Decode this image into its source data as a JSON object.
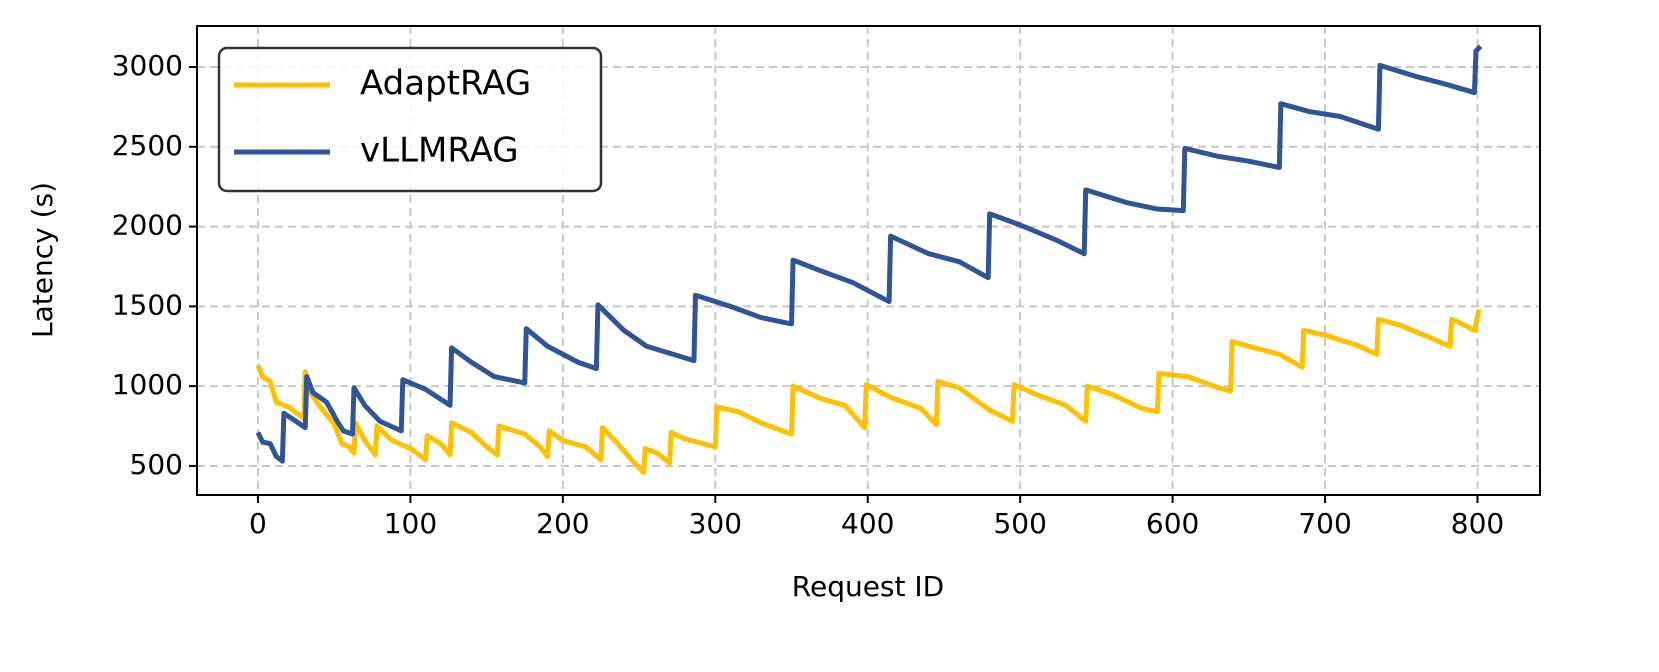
{
  "chart_data": {
    "type": "line",
    "xlabel": "Request ID",
    "ylabel": "Latency (s)",
    "xlim": [
      -40,
      841
    ],
    "ylim": [
      318,
      3257
    ],
    "xticks": [
      0,
      100,
      200,
      300,
      400,
      500,
      600,
      700,
      800
    ],
    "yticks": [
      500,
      1000,
      1500,
      2000,
      2500,
      3000
    ],
    "grid": true,
    "legend": "upper left",
    "series": [
      {
        "name": "AdaptRAG",
        "color": "#ffc000",
        "x": [
          0,
          3,
          8,
          12,
          20,
          30,
          31,
          33,
          40,
          50,
          55,
          60,
          63,
          64,
          70,
          77,
          78,
          88,
          100,
          110,
          111,
          120,
          126,
          127,
          140,
          150,
          157,
          158,
          175,
          185,
          190,
          191,
          200,
          215,
          225,
          226,
          235,
          245,
          253,
          254,
          262,
          270,
          271,
          280,
          300,
          301,
          315,
          330,
          350,
          351,
          370,
          385,
          398,
          399,
          415,
          435,
          445,
          446,
          460,
          480,
          495,
          496,
          510,
          530,
          543,
          544,
          560,
          580,
          590,
          591,
          610,
          630,
          638,
          639,
          650,
          670,
          685,
          686,
          700,
          720,
          734,
          735,
          750,
          770,
          782,
          783,
          790,
          798,
          801
        ],
        "values": [
          1130,
          1060,
          1030,
          900,
          870,
          800,
          1090,
          980,
          880,
          760,
          640,
          620,
          580,
          770,
          660,
          570,
          750,
          660,
          610,
          540,
          690,
          640,
          570,
          770,
          710,
          620,
          570,
          750,
          700,
          620,
          560,
          720,
          660,
          620,
          540,
          740,
          650,
          540,
          460,
          610,
          580,
          520,
          710,
          670,
          620,
          870,
          840,
          770,
          700,
          1000,
          920,
          880,
          740,
          1010,
          930,
          860,
          760,
          1030,
          990,
          850,
          780,
          1010,
          950,
          880,
          780,
          1000,
          950,
          860,
          840,
          1080,
          1060,
          990,
          970,
          1280,
          1250,
          1200,
          1120,
          1350,
          1320,
          1260,
          1200,
          1420,
          1380,
          1300,
          1250,
          1420,
          1390,
          1350,
          1480
        ]
      },
      {
        "name": "vLLMRAG",
        "color": "#2f5597",
        "x": [
          0,
          3,
          8,
          12,
          16,
          17,
          25,
          31,
          32,
          36,
          45,
          52,
          56,
          62,
          63,
          70,
          80,
          94,
          95,
          110,
          126,
          127,
          140,
          155,
          175,
          176,
          190,
          210,
          222,
          223,
          240,
          255,
          286,
          287,
          310,
          330,
          350,
          351,
          370,
          390,
          414,
          415,
          440,
          460,
          479,
          480,
          500,
          525,
          542,
          543,
          570,
          590,
          607,
          608,
          630,
          650,
          670,
          671,
          690,
          710,
          735,
          736,
          760,
          780,
          798,
          799,
          802
        ],
        "values": [
          710,
          650,
          640,
          560,
          530,
          830,
          780,
          740,
          1060,
          960,
          900,
          780,
          720,
          700,
          990,
          880,
          780,
          720,
          1040,
          980,
          880,
          1240,
          1150,
          1060,
          1020,
          1360,
          1250,
          1150,
          1110,
          1510,
          1350,
          1250,
          1160,
          1570,
          1500,
          1430,
          1390,
          1790,
          1720,
          1650,
          1530,
          1940,
          1830,
          1780,
          1680,
          2080,
          2010,
          1910,
          1830,
          2230,
          2150,
          2110,
          2100,
          2490,
          2440,
          2410,
          2370,
          2770,
          2720,
          2690,
          2610,
          3010,
          2940,
          2890,
          2840,
          3100,
          3130
        ]
      }
    ]
  }
}
